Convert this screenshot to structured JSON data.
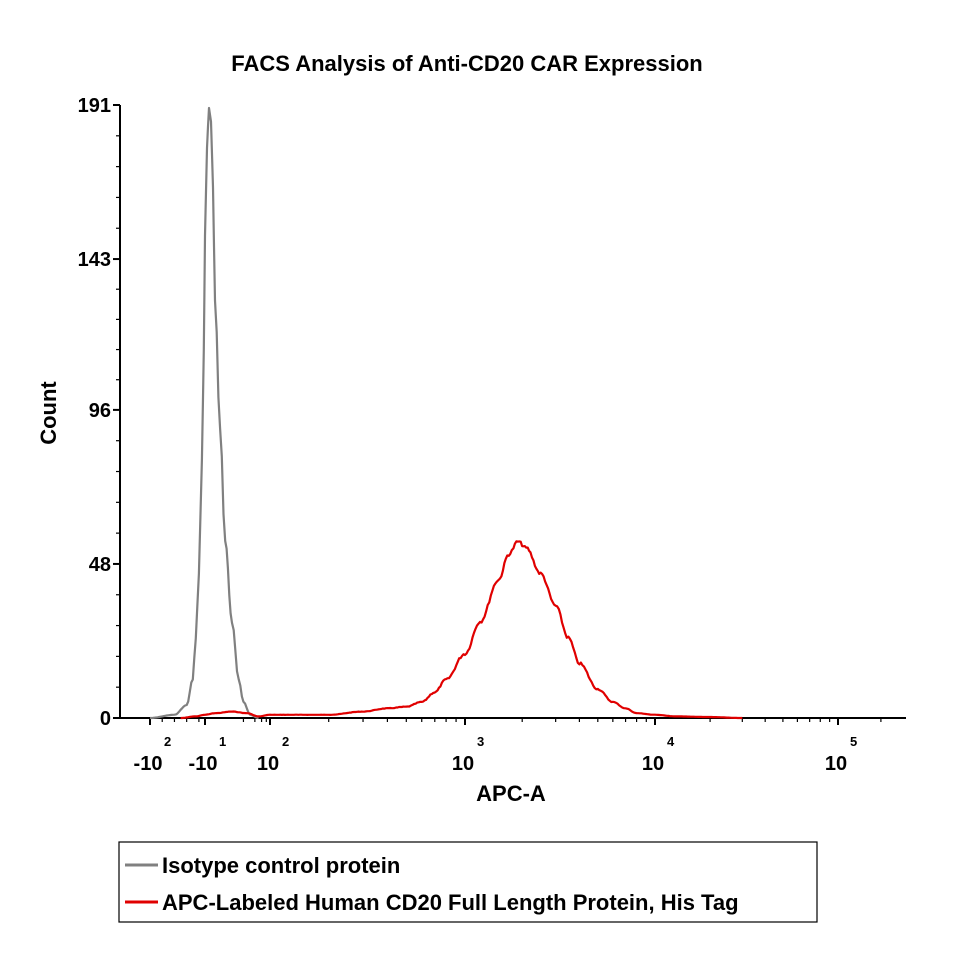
{
  "chart_data": {
    "type": "line",
    "title": "FACS Analysis of Anti-CD20 CAR Expression",
    "xlabel": "APC-A",
    "ylabel": "Count",
    "ylim": [
      0,
      191
    ],
    "y_ticks": [
      0,
      48,
      96,
      143,
      191
    ],
    "x_scale": "biexponential",
    "x_ticks": [
      {
        "base": "-10",
        "exp": "2",
        "value": -100
      },
      {
        "base": "-10",
        "exp": "1",
        "value": -10
      },
      {
        "base": "10",
        "exp": "2",
        "value": 100
      },
      {
        "base": "10",
        "exp": "3",
        "value": 1000
      },
      {
        "base": "10",
        "exp": "4",
        "value": 10000
      },
      {
        "base": "10",
        "exp": "5",
        "value": 100000
      }
    ],
    "grid": false,
    "legend_position": "bottom",
    "series": [
      {
        "name": "Isotype control protein",
        "color": "#808080",
        "x": [
          -100,
          -60,
          -40,
          -30,
          -25,
          -20,
          -15,
          -12,
          -10,
          -8,
          -6,
          -4,
          -2,
          0,
          3,
          6,
          10,
          15,
          20,
          30,
          50
        ],
        "y": [
          0,
          1,
          4,
          12,
          25,
          45,
          80,
          115,
          150,
          178,
          190,
          186,
          165,
          130,
          90,
          55,
          30,
          12,
          5,
          1,
          0
        ]
      },
      {
        "name": "APC-Labeled Human CD20 Full Length Protein, His Tag",
        "color": "#e00000",
        "x": [
          -50,
          -25,
          -10,
          0,
          10,
          25,
          50,
          100,
          150,
          200,
          300,
          400,
          500,
          600,
          700,
          800,
          1000,
          1200,
          1500,
          1700,
          1900,
          2100,
          2500,
          3000,
          3500,
          4000,
          5000,
          6000,
          7000,
          8000,
          10000,
          13000,
          20000,
          30000
        ],
        "y": [
          0,
          0.5,
          1,
          1.5,
          2,
          1.5,
          0.5,
          1,
          1,
          1,
          2,
          3,
          3.5,
          5,
          8,
          12,
          20,
          30,
          43,
          51,
          55,
          53,
          45,
          35,
          25,
          17,
          9,
          5,
          3,
          1.5,
          1,
          0.5,
          0.3,
          0
        ]
      }
    ]
  }
}
